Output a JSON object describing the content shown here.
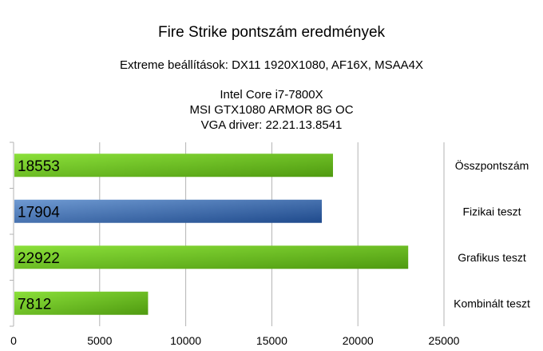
{
  "chart_data": {
    "type": "bar",
    "orientation": "horizontal",
    "title": "Fire Strike pontszám eredmények",
    "subtitle": "Extreme beállítások: DX11 1920X1080, AF16X, MSAA4X",
    "info_lines": [
      "Intel Core i7-7800X",
      "MSI GTX1080 ARMOR 8G OC",
      "VGA driver: 22.21.13.8541"
    ],
    "categories": [
      "Összpontszám",
      "Fizikai teszt",
      "Grafikus teszt",
      "Kombinált teszt"
    ],
    "values": [
      18553,
      17904,
      22922,
      7812
    ],
    "bar_colors": [
      "green",
      "blue",
      "green",
      "green"
    ],
    "palette": {
      "green_light": "#8be03a",
      "green_dark": "#4f9a10",
      "blue_light": "#6f9ad2",
      "blue_dark": "#1f4a8c",
      "grid": "#b3b3b3"
    },
    "xlim": [
      0,
      25000
    ],
    "xticks": [
      "0",
      "5000",
      "10000",
      "15000",
      "20000",
      "25000"
    ],
    "grid": true,
    "category_labels_position": "right",
    "data_labels_position": "inside-left"
  }
}
